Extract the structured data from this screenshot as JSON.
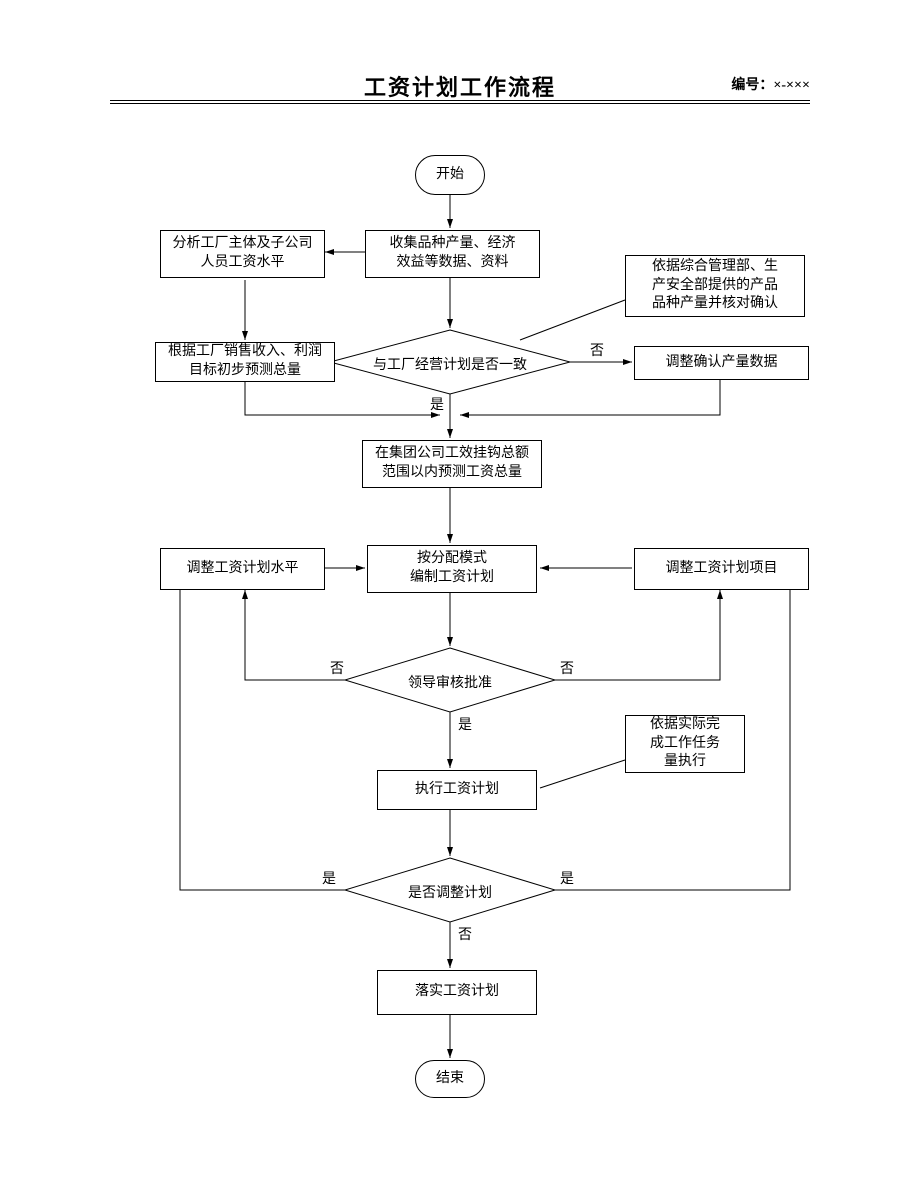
{
  "header": {
    "title": "工资计划工作流程",
    "docno": "编号：×-×××"
  },
  "nodes": {
    "start": "开始",
    "collect": "收集品种产量、经济\n效益等数据、资料",
    "analyze": "分析工厂主体及子公司\n人员工资水平",
    "estimate": "根据工厂销售收入、利润\n目标初步预测总量",
    "note1": "依据综合管理部、生\n产安全部提供的产品\n品种产量并核对确认",
    "decision1": "与工厂经营计划是否一致",
    "adjustData": "调整确认产量数据",
    "forecast": "在集团公司工效挂钩总额\n范围以内预测工资总量",
    "compile": "按分配模式\n编制工资计划",
    "adjLevel": "调整工资计划水平",
    "adjItem": "调整工资计划项目",
    "decision2": "领导审核批准",
    "execute": "执行工资计划",
    "note2": "依据实际完\n成工作任务\n量执行",
    "decision3": "是否调整计划",
    "finalize": "落实工资计划",
    "end": "结束"
  },
  "labels": {
    "yes": "是",
    "no": "否"
  },
  "style": {
    "stroke": "#000000",
    "bg": "#ffffff",
    "fontsize": 14
  }
}
